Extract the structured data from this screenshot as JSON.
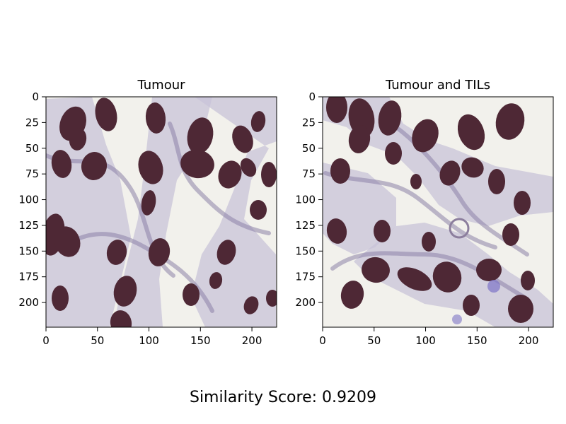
{
  "figure": {
    "footer_text": "Similarity Score: 0.9209",
    "panels": [
      {
        "title": "Tumour",
        "image_name": "tumour-histology-image",
        "x_ticks": [
          "0",
          "50",
          "100",
          "150",
          "200"
        ],
        "y_ticks": [
          "0",
          "25",
          "50",
          "75",
          "100",
          "125",
          "150",
          "175",
          "200"
        ],
        "xlim": [
          0,
          224
        ],
        "ylim": [
          0,
          224
        ],
        "tick_values_x": [
          0,
          50,
          100,
          150,
          200
        ],
        "tick_values_y": [
          0,
          25,
          50,
          75,
          100,
          125,
          150,
          175,
          200
        ]
      },
      {
        "title": "Tumour and TILs",
        "image_name": "tumour-and-tils-histology-image",
        "x_ticks": [
          "0",
          "50",
          "100",
          "150",
          "200"
        ],
        "y_ticks": [
          "0",
          "25",
          "50",
          "75",
          "100",
          "125",
          "150",
          "175",
          "200"
        ],
        "xlim": [
          0,
          224
        ],
        "ylim": [
          0,
          224
        ],
        "tick_values_x": [
          0,
          50,
          100,
          150,
          200
        ],
        "tick_values_y": [
          0,
          25,
          50,
          75,
          100,
          125,
          150,
          175,
          200
        ]
      }
    ]
  },
  "colors": {
    "background": "#ffffff",
    "stroma": "#c8c3d8",
    "nuclei_dark": "#4e2835",
    "nuclei_medium": "#6c3a52",
    "fiber": "#8c82a8",
    "spot_blue": "#7d74c7"
  }
}
